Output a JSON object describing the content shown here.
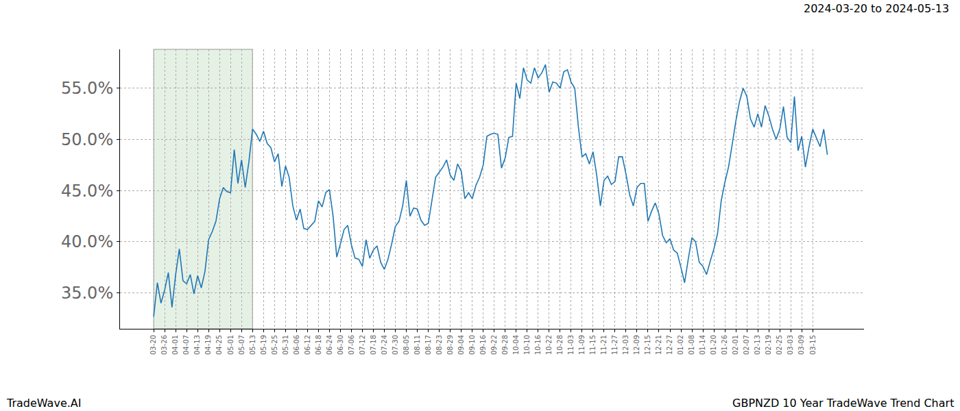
{
  "chart_data": {
    "type": "line",
    "subtitle": "2024-03-20 to 2024-05-13",
    "annotations": [
      "TradeWave.AI",
      "GBPNZD 10 Year TradeWave Trend Chart"
    ],
    "categories": [
      "03-20",
      null,
      null,
      "03-26",
      null,
      null,
      "04-01",
      null,
      null,
      "04-07",
      null,
      null,
      "04-13",
      null,
      null,
      "04-19",
      null,
      null,
      "04-25",
      null,
      null,
      "05-01",
      null,
      null,
      "05-07",
      null,
      null,
      "05-13",
      null,
      null,
      "05-19",
      null,
      null,
      "05-25",
      null,
      null,
      "05-31",
      null,
      null,
      "06-06",
      null,
      null,
      "06-12",
      null,
      null,
      "06-18",
      null,
      null,
      "06-24",
      null,
      null,
      "06-30",
      null,
      null,
      "07-06",
      null,
      null,
      "07-12",
      null,
      null,
      "07-18",
      null,
      null,
      "07-24",
      null,
      null,
      "07-30",
      null,
      null,
      "08-05",
      null,
      null,
      "08-11",
      null,
      null,
      "08-17",
      null,
      null,
      "08-23",
      null,
      null,
      "08-29",
      null,
      null,
      "09-04",
      null,
      null,
      "09-10",
      null,
      null,
      "09-16",
      null,
      null,
      "09-22",
      null,
      null,
      "09-28",
      null,
      null,
      "10-04",
      null,
      null,
      "10-10",
      null,
      null,
      "10-16",
      null,
      null,
      "10-22",
      null,
      null,
      "10-28",
      null,
      null,
      "11-03",
      null,
      null,
      "11-09",
      null,
      null,
      "11-15",
      null,
      null,
      "11-21",
      null,
      null,
      "11-27",
      null,
      null,
      "12-03",
      null,
      null,
      "12-09",
      null,
      null,
      "12-15",
      null,
      null,
      "12-21",
      null,
      null,
      "12-27",
      null,
      null,
      "01-02",
      null,
      null,
      "01-08",
      null,
      null,
      "01-14",
      null,
      null,
      "01-20",
      null,
      null,
      "01-26",
      null,
      null,
      "02-01",
      null,
      null,
      "02-07",
      null,
      null,
      "02-13",
      null,
      null,
      "02-19",
      null,
      null,
      "02-25",
      null,
      null,
      "03-03",
      null,
      null,
      "03-09",
      null,
      null,
      "03-15",
      null,
      null,
      null,
      null
    ],
    "values": [
      32.7,
      36.0,
      34.0,
      35.3,
      37.0,
      33.6,
      36.8,
      39.3,
      36.2,
      35.9,
      36.8,
      34.9,
      36.7,
      35.5,
      37.1,
      40.2,
      41.0,
      42.0,
      44.2,
      45.3,
      44.9,
      44.8,
      49.0,
      45.7,
      48.0,
      45.3,
      47.8,
      51.0,
      50.5,
      49.8,
      50.8,
      49.6,
      49.2,
      47.8,
      48.6,
      45.4,
      47.4,
      46.3,
      43.5,
      42.1,
      43.2,
      41.3,
      41.2,
      41.6,
      42.0,
      44.0,
      43.4,
      44.8,
      45.1,
      42.5,
      38.5,
      39.8,
      41.2,
      41.6,
      39.7,
      38.4,
      38.3,
      37.6,
      40.2,
      38.4,
      39.2,
      39.6,
      38.0,
      37.3,
      38.3,
      39.8,
      41.5,
      42.0,
      43.5,
      46.0,
      42.5,
      43.3,
      43.2,
      42.1,
      41.6,
      41.8,
      44.0,
      46.3,
      46.8,
      47.3,
      48.0,
      46.5,
      46.0,
      47.6,
      46.9,
      44.2,
      44.8,
      44.2,
      45.5,
      46.3,
      47.5,
      50.3,
      50.5,
      50.6,
      50.5,
      47.2,
      48.2,
      50.2,
      50.3,
      55.5,
      54.0,
      57.0,
      55.8,
      55.5,
      57.0,
      56.0,
      56.5,
      57.3,
      54.6,
      55.6,
      55.5,
      55.0,
      56.6,
      56.8,
      55.6,
      55.0,
      51.2,
      48.3,
      48.6,
      47.6,
      48.8,
      46.5,
      43.5,
      46.0,
      46.4,
      45.6,
      45.9,
      48.3,
      48.3,
      46.6,
      44.6,
      43.5,
      45.3,
      45.7,
      45.7,
      42.0,
      43.0,
      43.8,
      42.7,
      40.6,
      39.9,
      40.3,
      39.2,
      38.9,
      37.5,
      36.0,
      38.3,
      40.4,
      40.0,
      38.0,
      37.6,
      36.8,
      38.1,
      39.3,
      40.8,
      44.0,
      45.8,
      47.3,
      49.5,
      51.8,
      53.7,
      55.0,
      54.2,
      52.0,
      51.2,
      52.5,
      51.2,
      53.3,
      52.3,
      51.0,
      50.0,
      51.0,
      53.2,
      50.2,
      49.7,
      54.2,
      48.9,
      50.3,
      47.3,
      49.3,
      51.0,
      50.2,
      49.3,
      51.0,
      48.5
    ],
    "color": "#1f77b4",
    "shaded": [
      "03-20",
      "05-13"
    ],
    "xlim": [
      -9.2,
      194
    ],
    "ylim": [
      31.5,
      58.8
    ],
    "yticks": [
      {
        "value": 35,
        "label": "35.0%"
      },
      {
        "value": 40,
        "label": "40.0%"
      },
      {
        "value": 45,
        "label": "45.0%"
      },
      {
        "value": 50,
        "label": "50.0%"
      },
      {
        "value": 55,
        "label": "55.0%"
      }
    ],
    "grid": true
  }
}
